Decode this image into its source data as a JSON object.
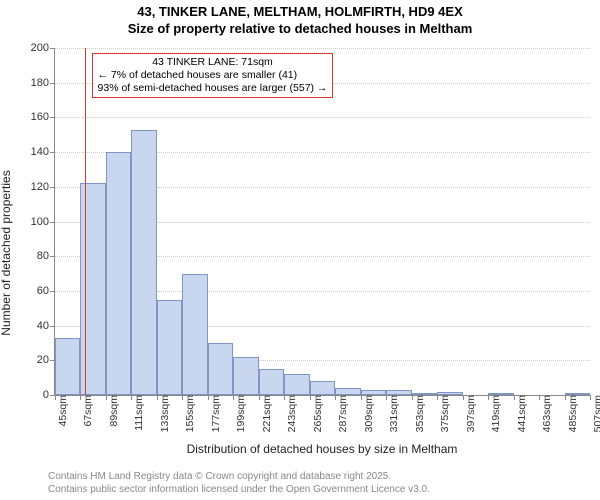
{
  "title_line1": "43, TINKER LANE, MELTHAM, HOLMFIRTH, HD9 4EX",
  "title_line2": "Size of property relative to detached houses in Meltham",
  "chart": {
    "type": "histogram",
    "ylabel": "Number of detached properties",
    "xlabel": "Distribution of detached houses by size in Meltham",
    "ylim": [
      0,
      200
    ],
    "ytick_step": 20,
    "x_start": 45,
    "x_step": 22,
    "x_count": 21,
    "x_suffix": "sqm",
    "values": [
      33,
      122,
      140,
      153,
      55,
      70,
      30,
      22,
      15,
      12,
      8,
      4,
      3,
      3,
      1,
      2,
      0,
      1,
      0,
      0,
      1
    ],
    "bar_fill": "#c8d6ef",
    "bar_border": "#7f96c3",
    "grid_color": "#cccccc",
    "axis_color": "#888888",
    "marker_value": 71,
    "marker_color": "#d9372a",
    "annotation_border": "#d9372a",
    "annotation_lines": [
      "43 TINKER LANE: 71sqm",
      "← 7% of detached houses are smaller (41)",
      "93% of semi-detached houses are larger (557) →"
    ]
  },
  "footer_line1": "Contains HM Land Registry data © Crown copyright and database right 2025.",
  "footer_line2": "Contains public sector information licensed under the Open Government Licence v3.0."
}
